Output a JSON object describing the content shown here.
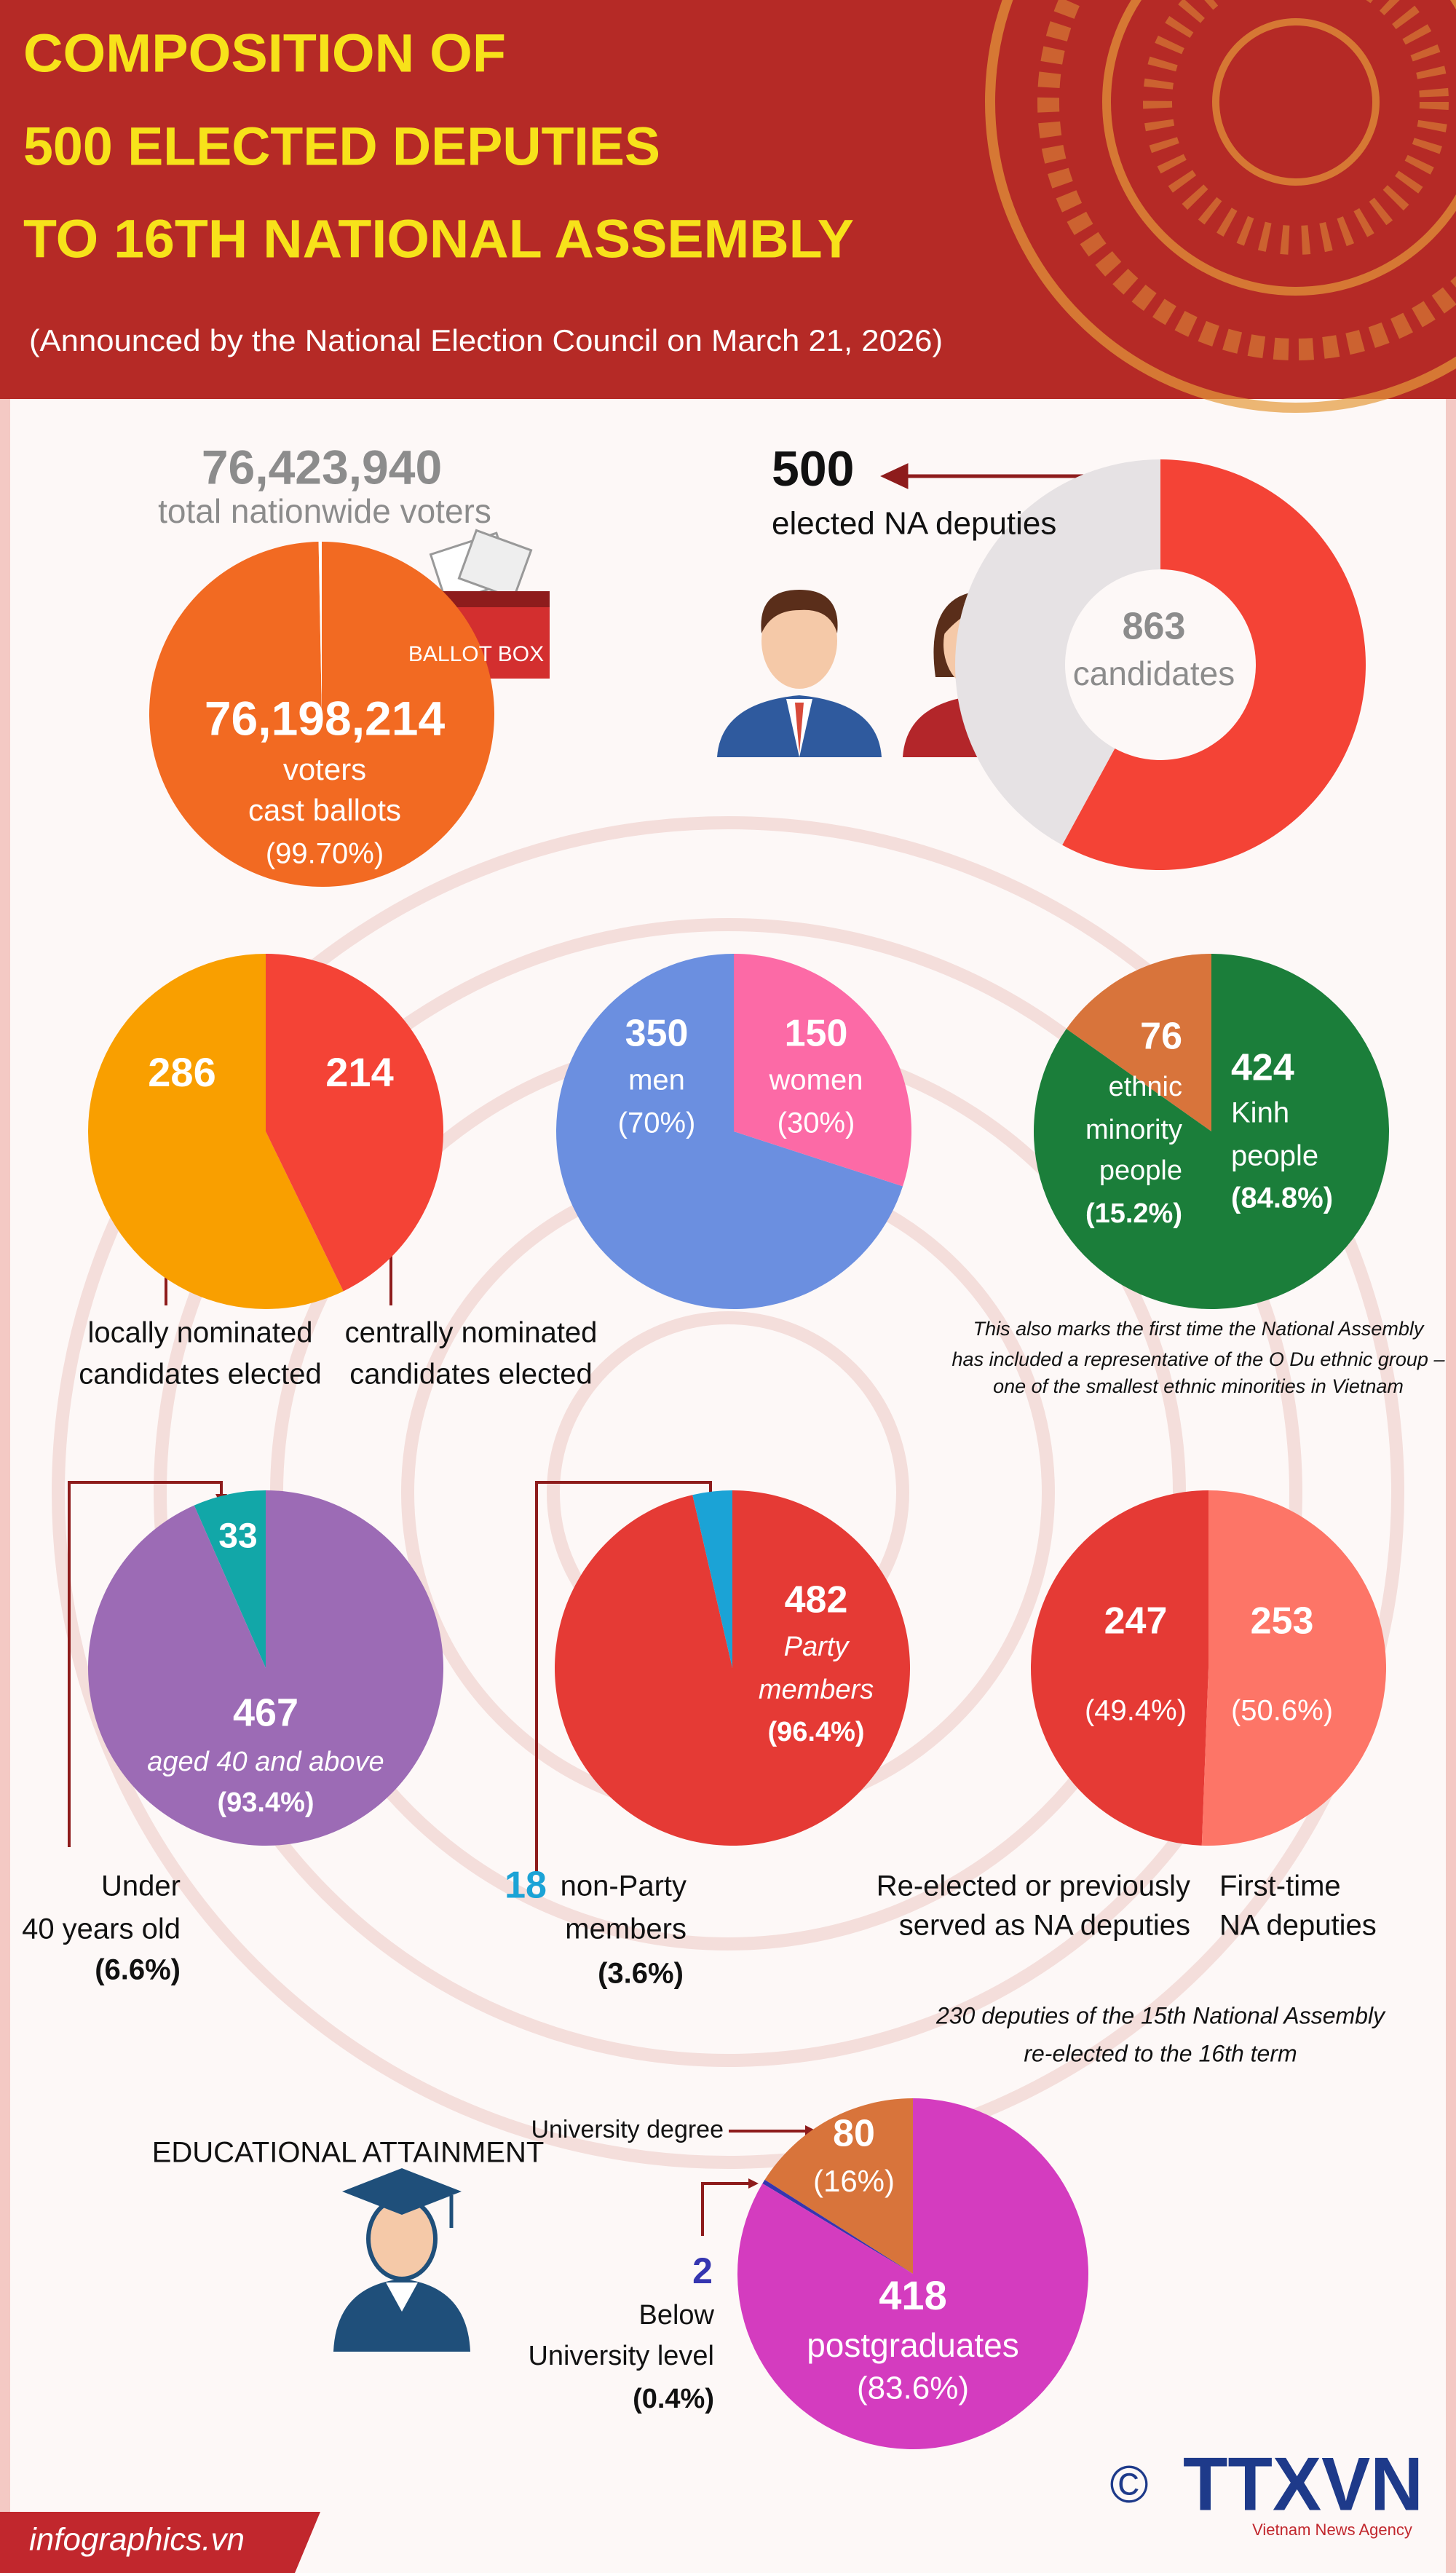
{
  "header": {
    "title_lines": [
      "COMPOSITION OF",
      "500 ELECTED DEPUTIES",
      "TO 16TH NATIONAL ASSEMBLY"
    ],
    "subtitle": "(Announced by the National Election Council on March 21, 2026)"
  },
  "chart_data": [
    {
      "type": "pie",
      "total": {
        "value": 76423940,
        "label": "76,423,940"
      },
      "total_caption": "total nationwide voters",
      "categories": [
        [
          "voters",
          "cast ballots"
        ]
      ],
      "values": [
        76198214
      ],
      "value_labels": [
        "76,198,214"
      ],
      "percent_labels": [
        "(99.70%)"
      ],
      "colors": [
        "#f26a22"
      ],
      "rest_color": "#ffffff",
      "counterclockwise": false,
      "icon_label": "BALLOT BOX"
    },
    {
      "type": "donut",
      "total": 863,
      "total_caption": "candidates",
      "categories": [
        [
          "elected NA deputies"
        ]
      ],
      "values": [
        500
      ],
      "colors": [
        "#f44336"
      ],
      "rest_color": "#e6e2e4",
      "counterclockwise": false
    },
    {
      "type": "pie",
      "categories": [
        [
          "locally nominated",
          "candidates elected"
        ],
        [
          "centrally nominated",
          "candidates elected"
        ]
      ],
      "values": [
        286,
        214
      ],
      "colors": [
        "#f99f00",
        "#f44336"
      ],
      "counterclockwise": true
    },
    {
      "type": "pie",
      "categories": [
        [
          "men"
        ],
        [
          "women"
        ]
      ],
      "values": [
        350,
        150
      ],
      "percent_labels": [
        "(70%)",
        "(30%)"
      ],
      "colors": [
        "#6b8fe0",
        "#fc6aa6"
      ],
      "counterclockwise": true
    },
    {
      "type": "pie",
      "categories": [
        [
          "ethnic",
          "minority",
          "people"
        ],
        [
          "Kinh",
          "people"
        ]
      ],
      "values": [
        76,
        424
      ],
      "percent_labels": [
        "(15.2%)",
        "(84.8%)"
      ],
      "colors": [
        "#d8743b",
        "#1b7e3a"
      ],
      "counterclockwise": true,
      "note": [
        "This also marks the first time the National Assembly",
        "has included a representative of the O Du ethnic group –",
        "one of the smallest ethnic minorities in Vietnam"
      ]
    },
    {
      "type": "pie",
      "categories": [
        [
          "Under",
          "40 years old"
        ],
        [
          "aged 40 and above"
        ]
      ],
      "values": [
        33,
        467
      ],
      "percent_labels": [
        "(6.6%)",
        "(93.4%)"
      ],
      "colors": [
        "#12a7a8",
        "#9c6bb5"
      ],
      "counterclockwise": true
    },
    {
      "type": "pie",
      "categories": [
        [
          "Party",
          "members"
        ],
        [
          "non-Party",
          "members"
        ]
      ],
      "values": [
        482,
        18
      ],
      "percent_labels": [
        "(96.4%)",
        "(3.6%)"
      ],
      "colors": [
        "#e53a35",
        "#1ba3d6"
      ],
      "counterclockwise": false
    },
    {
      "type": "pie",
      "categories": [
        [
          "Re-elected or previously",
          "served as NA deputies"
        ],
        [
          "First-time",
          "NA deputies"
        ]
      ],
      "values": [
        247,
        253
      ],
      "percent_labels": [
        "(49.4%)",
        "(50.6%)"
      ],
      "colors": [
        "#e53a35",
        "#fd7567"
      ],
      "counterclockwise": true,
      "note": [
        "230 deputies of the 15th National Assembly",
        "re-elected to the 16th term"
      ]
    },
    {
      "type": "pie",
      "title": "EDUCATIONAL ATTAINMENT",
      "categories": [
        [
          "University degree"
        ],
        [
          "Below",
          "University level"
        ],
        [
          "postgraduates"
        ]
      ],
      "values": [
        80,
        2,
        418
      ],
      "percent_labels": [
        "(16%)",
        "(0.4%)",
        "(83.6%)"
      ],
      "colors": [
        "#d8743b",
        "#3535b0",
        "#d43cbf"
      ],
      "counterclockwise": true
    }
  ],
  "footer": {
    "site": "infographics.vn",
    "copyright": "©",
    "logo": "TTXVN",
    "logo_caption": "Vietnam News Agency"
  }
}
